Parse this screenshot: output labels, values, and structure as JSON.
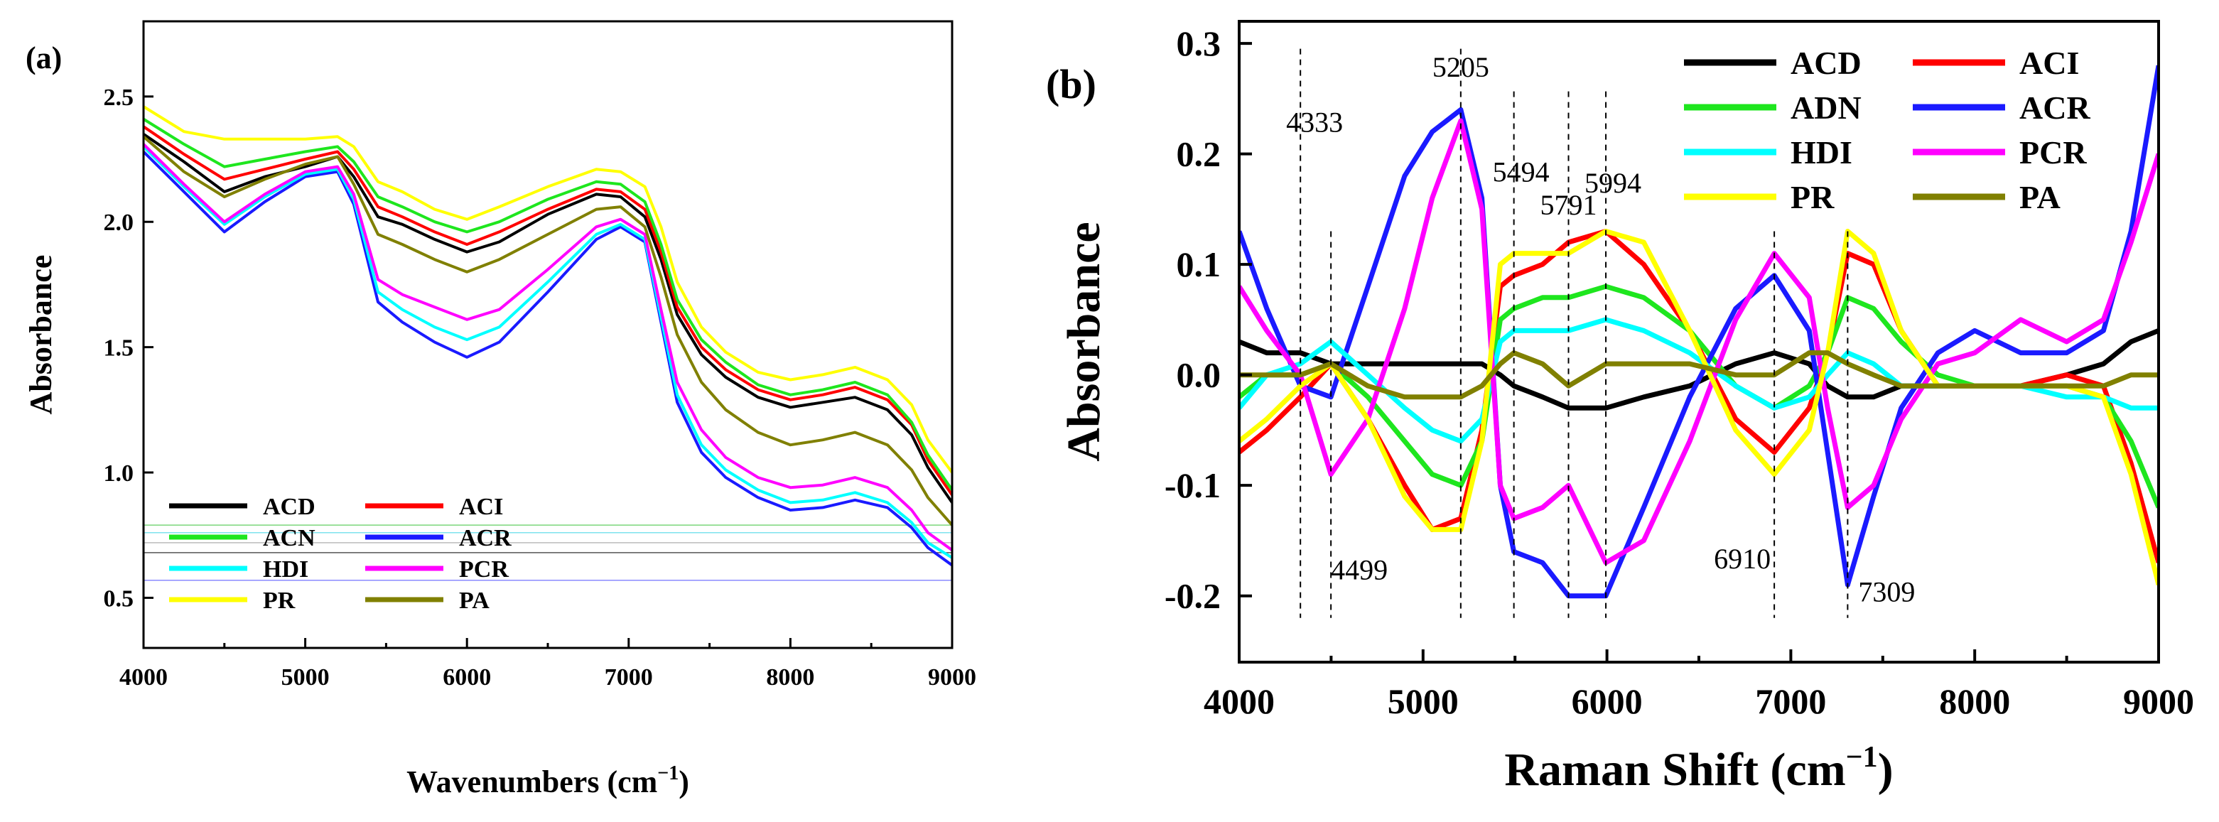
{
  "chart_data": [
    {
      "panel_label": "(a)",
      "type": "line",
      "xlabel": "Wavenumbers (cm",
      "xlabel_sup": "−1",
      "xlabel_close": ")",
      "ylabel": "Absorbance",
      "xlim": [
        4000,
        9000
      ],
      "ylim": [
        0.3,
        2.8
      ],
      "xticks": [
        "4000",
        "5000",
        "6000",
        "7000",
        "8000",
        "9000"
      ],
      "yticks": [
        "0.5",
        "1.0",
        "1.5",
        "2.0",
        "2.5"
      ],
      "x": [
        4000,
        4250,
        4500,
        4750,
        5000,
        5200,
        5300,
        5450,
        5600,
        5800,
        6000,
        6200,
        6500,
        6800,
        6950,
        7100,
        7200,
        7300,
        7450,
        7600,
        7800,
        8000,
        8200,
        8400,
        8600,
        8750,
        8850,
        9000
      ],
      "series": [
        {
          "name": "ACD",
          "color": "#000000",
          "values": [
            2.35,
            2.24,
            2.12,
            2.18,
            2.22,
            2.26,
            2.18,
            2.02,
            1.99,
            1.93,
            1.88,
            1.92,
            2.03,
            2.11,
            2.1,
            2.02,
            1.85,
            1.63,
            1.47,
            1.38,
            1.3,
            1.26,
            1.28,
            1.3,
            1.25,
            1.15,
            1.02,
            0.88
          ]
        },
        {
          "name": "ACI",
          "color": "#ff0000",
          "values": [
            2.38,
            2.27,
            2.17,
            2.21,
            2.25,
            2.28,
            2.21,
            2.06,
            2.02,
            1.96,
            1.91,
            1.96,
            2.05,
            2.13,
            2.12,
            2.05,
            1.88,
            1.66,
            1.5,
            1.41,
            1.33,
            1.29,
            1.31,
            1.34,
            1.29,
            1.19,
            1.05,
            0.91
          ]
        },
        {
          "name": "ACN",
          "color": "#1ee61e",
          "values": [
            2.41,
            2.31,
            2.22,
            2.25,
            2.28,
            2.3,
            2.24,
            2.1,
            2.06,
            2.0,
            1.96,
            2.0,
            2.09,
            2.16,
            2.15,
            2.08,
            1.91,
            1.69,
            1.53,
            1.44,
            1.35,
            1.31,
            1.33,
            1.36,
            1.31,
            1.2,
            1.07,
            0.93
          ]
        },
        {
          "name": "ACR",
          "color": "#1a1aff",
          "values": [
            2.28,
            2.12,
            1.96,
            2.08,
            2.18,
            2.2,
            2.07,
            1.68,
            1.6,
            1.52,
            1.46,
            1.52,
            1.72,
            1.93,
            1.98,
            1.92,
            1.6,
            1.28,
            1.08,
            0.98,
            0.9,
            0.85,
            0.86,
            0.89,
            0.86,
            0.78,
            0.7,
            0.63
          ]
        },
        {
          "name": "HDI",
          "color": "#00ffff",
          "values": [
            2.3,
            2.14,
            1.99,
            2.1,
            2.19,
            2.21,
            2.09,
            1.72,
            1.65,
            1.58,
            1.53,
            1.58,
            1.76,
            1.95,
            1.99,
            1.93,
            1.62,
            1.31,
            1.11,
            1.01,
            0.93,
            0.88,
            0.89,
            0.92,
            0.88,
            0.8,
            0.72,
            0.66
          ]
        },
        {
          "name": "PCR",
          "color": "#ff00ff",
          "values": [
            2.31,
            2.15,
            2.0,
            2.11,
            2.2,
            2.22,
            2.11,
            1.77,
            1.71,
            1.66,
            1.61,
            1.65,
            1.81,
            1.98,
            2.01,
            1.95,
            1.65,
            1.36,
            1.17,
            1.06,
            0.98,
            0.94,
            0.95,
            0.98,
            0.94,
            0.85,
            0.76,
            0.69
          ]
        },
        {
          "name": "PR",
          "color": "#ffff00",
          "values": [
            2.46,
            2.36,
            2.33,
            2.33,
            2.33,
            2.34,
            2.3,
            2.16,
            2.12,
            2.05,
            2.01,
            2.06,
            2.14,
            2.21,
            2.2,
            2.14,
            1.98,
            1.76,
            1.58,
            1.48,
            1.4,
            1.37,
            1.39,
            1.42,
            1.37,
            1.27,
            1.13,
            1.0
          ]
        },
        {
          "name": "PA",
          "color": "#808000",
          "values": [
            2.34,
            2.2,
            2.1,
            2.17,
            2.23,
            2.26,
            2.15,
            1.95,
            1.91,
            1.85,
            1.8,
            1.85,
            1.95,
            2.05,
            2.06,
            1.98,
            1.78,
            1.55,
            1.36,
            1.25,
            1.16,
            1.11,
            1.13,
            1.16,
            1.11,
            1.01,
            0.9,
            0.79
          ]
        }
      ]
    },
    {
      "panel_label": "(b)",
      "type": "line",
      "xlabel": "Raman Shift (cm",
      "xlabel_sup": "−1",
      "xlabel_close": ")",
      "ylabel": "Absorbance",
      "xlim": [
        4000,
        9000
      ],
      "ylim": [
        -0.26,
        0.32
      ],
      "xticks": [
        "4000",
        "5000",
        "6000",
        "7000",
        "8000",
        "9000"
      ],
      "yticks": [
        "-0.2",
        "-0.1",
        "0.0",
        "0.1",
        "0.2",
        "0.3"
      ],
      "x": [
        4000,
        4150,
        4333,
        4499,
        4700,
        4900,
        5050,
        5205,
        5320,
        5420,
        5494,
        5650,
        5791,
        5994,
        6200,
        6450,
        6700,
        6910,
        7100,
        7200,
        7309,
        7450,
        7600,
        7800,
        8000,
        8250,
        8500,
        8700,
        8850,
        9000
      ],
      "series": [
        {
          "name": "ACD",
          "color": "#000000",
          "values": [
            0.03,
            0.02,
            0.02,
            0.01,
            0.01,
            0.01,
            0.01,
            0.01,
            0.01,
            0.0,
            -0.01,
            -0.02,
            -0.03,
            -0.03,
            -0.02,
            -0.01,
            0.01,
            0.02,
            0.01,
            -0.01,
            -0.02,
            -0.02,
            -0.01,
            -0.01,
            -0.01,
            -0.01,
            0.0,
            0.01,
            0.03,
            0.04
          ]
        },
        {
          "name": "ACI",
          "color": "#ff0000",
          "values": [
            -0.07,
            -0.05,
            -0.02,
            0.01,
            -0.04,
            -0.1,
            -0.14,
            -0.13,
            -0.05,
            0.08,
            0.09,
            0.1,
            0.12,
            0.13,
            0.1,
            0.04,
            -0.04,
            -0.07,
            -0.03,
            0.02,
            0.11,
            0.1,
            0.04,
            -0.01,
            -0.01,
            -0.01,
            0.0,
            -0.01,
            -0.08,
            -0.17
          ]
        },
        {
          "name": "ADN",
          "color": "#1ee61e",
          "values": [
            -0.02,
            0.0,
            0.0,
            0.01,
            -0.02,
            -0.06,
            -0.09,
            -0.1,
            -0.06,
            0.05,
            0.06,
            0.07,
            0.07,
            0.08,
            0.07,
            0.04,
            -0.01,
            -0.03,
            -0.01,
            0.02,
            0.07,
            0.06,
            0.03,
            0.0,
            -0.01,
            -0.01,
            -0.01,
            -0.02,
            -0.06,
            -0.12
          ]
        },
        {
          "name": "ACR",
          "color": "#1a1aff",
          "values": [
            0.13,
            0.06,
            -0.01,
            -0.02,
            0.08,
            0.18,
            0.22,
            0.24,
            0.16,
            -0.1,
            -0.16,
            -0.17,
            -0.2,
            -0.2,
            -0.12,
            -0.02,
            0.06,
            0.09,
            0.04,
            -0.07,
            -0.19,
            -0.11,
            -0.03,
            0.02,
            0.04,
            0.02,
            0.02,
            0.04,
            0.13,
            0.28
          ]
        },
        {
          "name": "HDI",
          "color": "#00ffff",
          "values": [
            -0.03,
            0.0,
            0.01,
            0.03,
            0.0,
            -0.03,
            -0.05,
            -0.06,
            -0.04,
            0.03,
            0.04,
            0.04,
            0.04,
            0.05,
            0.04,
            0.02,
            -0.01,
            -0.03,
            -0.02,
            0.0,
            0.02,
            0.01,
            -0.01,
            -0.01,
            -0.01,
            -0.01,
            -0.02,
            -0.02,
            -0.03,
            -0.03
          ]
        },
        {
          "name": "PCR",
          "color": "#ff00ff",
          "values": [
            0.08,
            0.04,
            0.0,
            -0.09,
            -0.04,
            0.06,
            0.16,
            0.23,
            0.15,
            -0.1,
            -0.13,
            -0.12,
            -0.1,
            -0.17,
            -0.15,
            -0.06,
            0.05,
            0.11,
            0.07,
            -0.03,
            -0.12,
            -0.1,
            -0.04,
            0.01,
            0.02,
            0.05,
            0.03,
            0.05,
            0.12,
            0.2
          ]
        },
        {
          "name": "PR",
          "color": "#ffff00",
          "values": [
            -0.06,
            -0.04,
            -0.01,
            0.01,
            -0.04,
            -0.11,
            -0.14,
            -0.14,
            -0.06,
            0.1,
            0.11,
            0.11,
            0.11,
            0.13,
            0.12,
            0.04,
            -0.05,
            -0.09,
            -0.05,
            0.02,
            0.13,
            0.11,
            0.04,
            -0.01,
            -0.01,
            -0.01,
            -0.01,
            -0.02,
            -0.09,
            -0.19
          ]
        },
        {
          "name": "PA",
          "color": "#808000",
          "values": [
            0.0,
            0.0,
            0.0,
            0.01,
            -0.01,
            -0.02,
            -0.02,
            -0.02,
            -0.01,
            0.01,
            0.02,
            0.01,
            -0.01,
            0.01,
            0.01,
            0.01,
            0.0,
            0.0,
            0.02,
            0.02,
            0.01,
            0.0,
            -0.01,
            -0.01,
            -0.01,
            -0.01,
            -0.01,
            -0.01,
            0.0,
            0.0
          ]
        }
      ],
      "annotations": [
        {
          "label": "4333",
          "x": 4333,
          "text_pos": "above"
        },
        {
          "label": "4499",
          "x": 4499,
          "text_pos": "below"
        },
        {
          "label": "5205",
          "x": 5205,
          "text_pos": "above"
        },
        {
          "label": "5494",
          "x": 5494,
          "text_pos": "above"
        },
        {
          "label": "5791",
          "x": 5791,
          "text_pos": "above"
        },
        {
          "label": "5994",
          "x": 5994,
          "text_pos": "above"
        },
        {
          "label": "6910",
          "x": 6910,
          "text_pos": "below"
        },
        {
          "label": "7309",
          "x": 7309,
          "text_pos": "below"
        }
      ]
    }
  ]
}
